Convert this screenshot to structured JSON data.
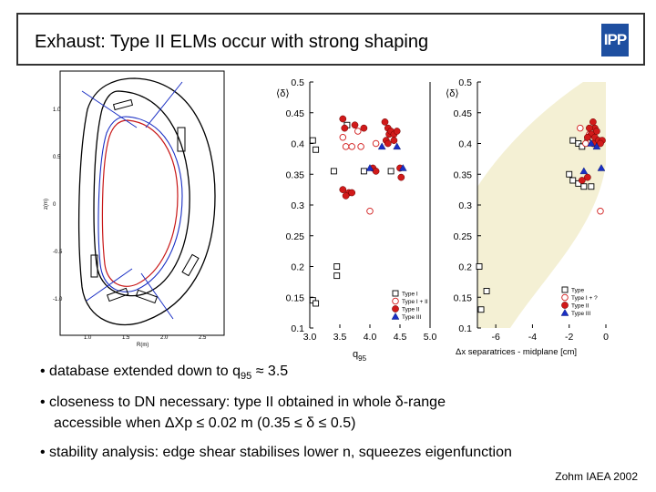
{
  "slide": {
    "title": "Exhaust: Type II ELMs occur with strong shaping",
    "logo_text": "IPP",
    "credit": "Zohm IAEA 2002"
  },
  "bullets": [
    {
      "prefix": "• database extended down to q",
      "sub": "95",
      "suffix": " ≈ 3.5"
    },
    {
      "text": "• closeness to DN necessary: type II obtained in whole δ-range"
    },
    {
      "text": "accessible when ΔXp ≤ 0.02 m (0.35 ≤ δ ≤ 0.5)"
    },
    {
      "text": "• stability analysis: edge shear stabilises lower n, squeezes eigenfunction"
    }
  ],
  "colors": {
    "type_ii": "#d11a1a",
    "type_iii": "#1a2fc4",
    "shaded_region": "#f4f0d4",
    "logo": "#1e4fa0"
  },
  "equilibrium_panel": {
    "xlabel": "R(m)",
    "ylabel": "z(m)",
    "xticks": [
      "1.0",
      "1.5",
      "2.0",
      "2.5"
    ],
    "yticks": [
      "1.0",
      "0.5",
      "0",
      "-0.5",
      "-1.0"
    ]
  },
  "chart_data": [
    {
      "type": "scatter",
      "ylabel": "⟨δ⟩",
      "xlabel": "q",
      "xlabel_sub": "95",
      "xlim": [
        3.0,
        5.0
      ],
      "ylim": [
        0.1,
        0.5
      ],
      "xticks": [
        "3.0",
        "3.5",
        "4.0",
        "4.5",
        "5.0"
      ],
      "yticks": [
        "0.5",
        "0.45",
        "0.4",
        "0.35",
        "0.3",
        "0.25",
        "0.2",
        "0.15",
        "0.1"
      ],
      "legend": [
        "Type I",
        "Type I + II",
        "Type II",
        "Type III"
      ],
      "legend_position": "bottom-right",
      "series": [
        {
          "name": "Type I",
          "marker": "open-square",
          "points": [
            [
              3.05,
              0.405
            ],
            [
              3.1,
              0.39
            ],
            [
              3.4,
              0.355
            ],
            [
              3.62,
              0.43
            ],
            [
              3.9,
              0.355
            ],
            [
              4.35,
              0.355
            ],
            [
              3.45,
              0.2
            ],
            [
              3.45,
              0.185
            ],
            [
              3.05,
              0.145
            ],
            [
              3.1,
              0.14
            ]
          ]
        },
        {
          "name": "Type I + II",
          "marker": "open-circle",
          "points": [
            [
              3.55,
              0.41
            ],
            [
              3.6,
              0.395
            ],
            [
              3.8,
              0.42
            ],
            [
              3.85,
              0.395
            ],
            [
              3.7,
              0.395
            ],
            [
              4.0,
              0.29
            ],
            [
              4.1,
              0.4
            ]
          ]
        },
        {
          "name": "Type II",
          "marker": "filled-circle",
          "points": [
            [
              3.55,
              0.44
            ],
            [
              3.58,
              0.425
            ],
            [
              3.75,
              0.43
            ],
            [
              3.9,
              0.425
            ],
            [
              4.25,
              0.435
            ],
            [
              4.3,
              0.425
            ],
            [
              4.32,
              0.415
            ],
            [
              4.35,
              0.42
            ],
            [
              4.4,
              0.415
            ],
            [
              4.45,
              0.42
            ],
            [
              4.27,
              0.405
            ],
            [
              4.3,
              0.4
            ],
            [
              4.4,
              0.405
            ],
            [
              4.05,
              0.36
            ],
            [
              4.1,
              0.355
            ],
            [
              4.5,
              0.36
            ],
            [
              4.52,
              0.345
            ],
            [
              3.65,
              0.32
            ],
            [
              3.7,
              0.32
            ],
            [
              3.6,
              0.315
            ],
            [
              3.55,
              0.325
            ]
          ]
        },
        {
          "name": "Type III",
          "marker": "filled-triangle",
          "points": [
            [
              4.0,
              0.36
            ],
            [
              4.2,
              0.395
            ],
            [
              4.45,
              0.395
            ],
            [
              4.55,
              0.36
            ]
          ]
        }
      ]
    },
    {
      "type": "scatter",
      "ylabel": "⟨δ⟩",
      "xlabel": "Δx separatrices - midplane [cm]",
      "xlim": [
        -7,
        0
      ],
      "ylim": [
        0.1,
        0.5
      ],
      "xticks": [
        "-6",
        "-4",
        "-2",
        "0"
      ],
      "yticks": [
        "0.5",
        "0.45",
        "0.4",
        "0.35",
        "0.3",
        "0.25",
        "0.2",
        "0.15",
        "0.1"
      ],
      "legend": [
        "Type",
        "Type I + ?",
        "Type II",
        "Type III"
      ],
      "legend_position": "bottom-right",
      "series": [
        {
          "name": "Type",
          "marker": "open-square",
          "points": [
            [
              -1.8,
              0.405
            ],
            [
              -1.5,
              0.4
            ],
            [
              -1.3,
              0.395
            ],
            [
              -1.0,
              0.405
            ],
            [
              -2.0,
              0.35
            ],
            [
              -1.8,
              0.34
            ],
            [
              -1.5,
              0.335
            ],
            [
              -1.2,
              0.33
            ],
            [
              -0.8,
              0.33
            ],
            [
              -6.9,
              0.2
            ],
            [
              -6.5,
              0.16
            ],
            [
              -6.8,
              0.13
            ]
          ]
        },
        {
          "name": "Type I + ?",
          "marker": "open-circle",
          "points": [
            [
              -0.9,
              0.415
            ],
            [
              -1.1,
              0.4
            ],
            [
              -1.4,
              0.425
            ],
            [
              -0.3,
              0.29
            ]
          ]
        },
        {
          "name": "Type II",
          "marker": "filled-circle",
          "points": [
            [
              -0.7,
              0.435
            ],
            [
              -0.6,
              0.425
            ],
            [
              -0.9,
              0.425
            ],
            [
              -0.5,
              0.42
            ],
            [
              -0.8,
              0.415
            ],
            [
              -0.6,
              0.41
            ],
            [
              -0.4,
              0.405
            ],
            [
              -0.7,
              0.4
            ],
            [
              -1.0,
              0.41
            ],
            [
              -0.2,
              0.405
            ],
            [
              -0.3,
              0.4
            ],
            [
              -1.0,
              0.345
            ],
            [
              -1.3,
              0.34
            ]
          ]
        },
        {
          "name": "Type III",
          "marker": "filled-triangle",
          "points": [
            [
              -0.5,
              0.395
            ],
            [
              -0.25,
              0.36
            ],
            [
              -1.2,
              0.355
            ],
            [
              -0.8,
              0.4
            ]
          ]
        }
      ]
    }
  ]
}
